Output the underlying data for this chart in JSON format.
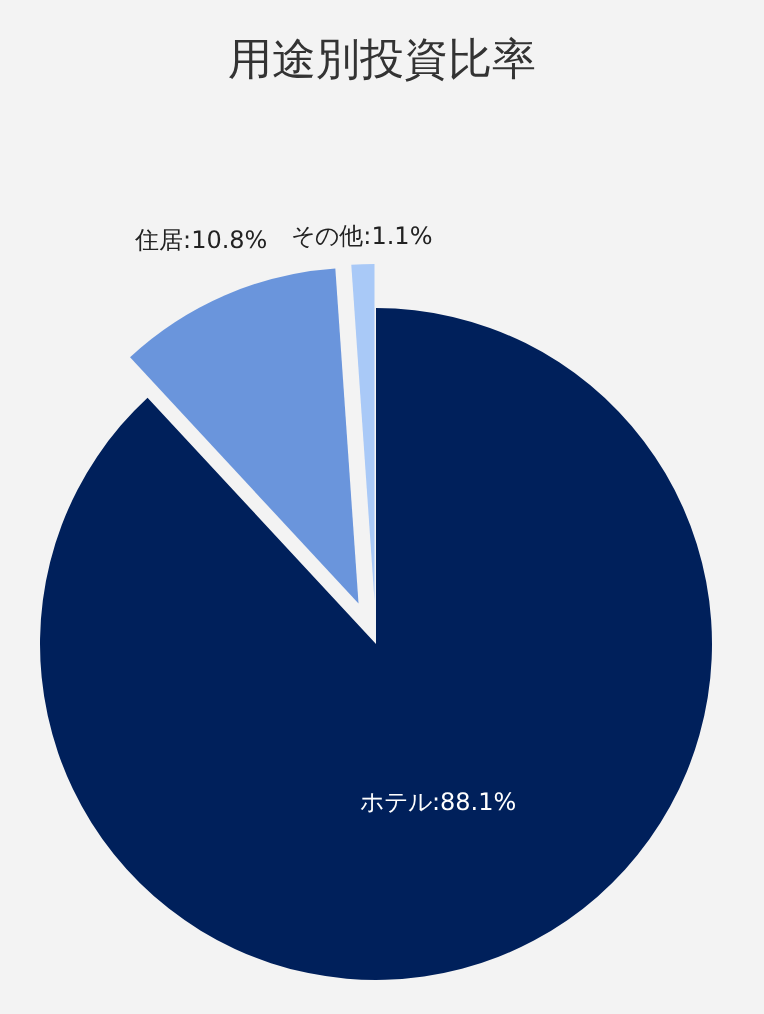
{
  "chart_data": {
    "type": "pie",
    "title": "用途別投資比率",
    "categories": [
      "ホテル",
      "住居",
      "その他"
    ],
    "values": [
      88.1,
      10.8,
      1.1
    ],
    "value_labels": [
      "88.1%",
      "10.8%",
      "1.1%"
    ],
    "colors": [
      "#00205b",
      "#6a95dc",
      "#a9c9f7"
    ],
    "legend": false
  }
}
